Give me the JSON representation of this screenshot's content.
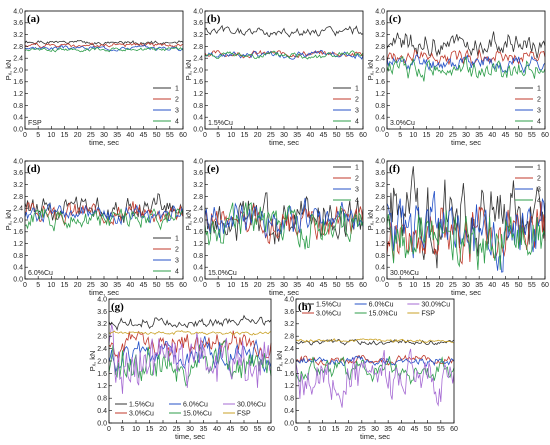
{
  "figure": {
    "x_label": "time, sec",
    "y_label": "Pₓ, kN"
  },
  "chart_data": [
    {
      "panel": "(a)",
      "type": "line",
      "note": "FSP",
      "xlim": [
        0,
        60
      ],
      "ylim": [
        0,
        4
      ],
      "x_ticks": [
        "0",
        "5",
        "10",
        "15",
        "20",
        "25",
        "30",
        "35",
        "40",
        "45",
        "50",
        "55",
        "60"
      ],
      "y_ticks": [
        "0.0",
        "0.4",
        "0.8",
        "1.2",
        "1.6",
        "2.0",
        "2.4",
        "2.8",
        "3.2",
        "3.6",
        "4.0"
      ],
      "legend_position": "bottom-right",
      "series": [
        {
          "name": "1",
          "color": "#333333",
          "base": 2.92,
          "amp": 0.05,
          "seed": 1
        },
        {
          "name": "2",
          "color": "#c0392b",
          "base": 2.85,
          "amp": 0.05,
          "seed": 2
        },
        {
          "name": "3",
          "color": "#2451c7",
          "base": 2.75,
          "amp": 0.05,
          "seed": 3
        },
        {
          "name": "4",
          "color": "#2e9e4a",
          "base": 2.7,
          "amp": 0.05,
          "seed": 4
        }
      ]
    },
    {
      "panel": "(b)",
      "type": "line",
      "note": "1.5%Cu",
      "xlim": [
        0,
        60
      ],
      "ylim": [
        0,
        4
      ],
      "x_ticks": [
        "0",
        "5",
        "10",
        "15",
        "20",
        "25",
        "30",
        "35",
        "40",
        "45",
        "50",
        "55",
        "60"
      ],
      "y_ticks": [
        "0.0",
        "0.4",
        "0.8",
        "1.2",
        "1.6",
        "2.0",
        "2.4",
        "2.8",
        "3.2",
        "3.6",
        "4.0"
      ],
      "legend_position": "bottom-right",
      "series": [
        {
          "name": "1",
          "color": "#333333",
          "base": 3.28,
          "amp": 0.12,
          "seed": 5
        },
        {
          "name": "2",
          "color": "#c0392b",
          "base": 2.55,
          "amp": 0.08,
          "seed": 6
        },
        {
          "name": "3",
          "color": "#2451c7",
          "base": 2.52,
          "amp": 0.08,
          "seed": 7
        },
        {
          "name": "4",
          "color": "#2e9e4a",
          "base": 2.5,
          "amp": 0.08,
          "seed": 8
        }
      ]
    },
    {
      "panel": "(c)",
      "type": "line",
      "note": "3.0%Cu",
      "xlim": [
        0,
        60
      ],
      "ylim": [
        0,
        4
      ],
      "x_ticks": [
        "0",
        "5",
        "10",
        "15",
        "20",
        "25",
        "30",
        "35",
        "40",
        "45",
        "50",
        "55",
        "60"
      ],
      "y_ticks": [
        "0.0",
        "0.4",
        "0.8",
        "1.2",
        "1.6",
        "2.0",
        "2.4",
        "2.8",
        "3.2",
        "3.6",
        "4.0"
      ],
      "legend_position": "bottom-right",
      "series": [
        {
          "name": "1",
          "color": "#333333",
          "base": 2.85,
          "amp": 0.3,
          "seed": 9
        },
        {
          "name": "2",
          "color": "#c0392b",
          "base": 2.45,
          "amp": 0.2,
          "seed": 10
        },
        {
          "name": "3",
          "color": "#2451c7",
          "base": 2.25,
          "amp": 0.2,
          "seed": 11
        },
        {
          "name": "4",
          "color": "#2e9e4a",
          "base": 2.05,
          "amp": 0.25,
          "seed": 12
        }
      ]
    },
    {
      "panel": "(d)",
      "type": "line",
      "note": "6.0%Cu",
      "xlim": [
        0,
        60
      ],
      "ylim": [
        0,
        4
      ],
      "x_ticks": [
        "0",
        "5",
        "10",
        "15",
        "20",
        "25",
        "30",
        "35",
        "40",
        "45",
        "50",
        "55",
        "60"
      ],
      "y_ticks": [
        "0.0",
        "0.4",
        "0.8",
        "1.2",
        "1.6",
        "2.0",
        "2.4",
        "2.8",
        "3.2",
        "3.6",
        "4.0"
      ],
      "legend_position": "bottom-right",
      "series": [
        {
          "name": "1",
          "color": "#333333",
          "base": 2.45,
          "amp": 0.3,
          "seed": 13
        },
        {
          "name": "2",
          "color": "#c0392b",
          "base": 2.25,
          "amp": 0.25,
          "seed": 14
        },
        {
          "name": "3",
          "color": "#2451c7",
          "base": 2.2,
          "amp": 0.2,
          "seed": 15
        },
        {
          "name": "4",
          "color": "#2e9e4a",
          "base": 2.05,
          "amp": 0.25,
          "seed": 16
        }
      ]
    },
    {
      "panel": "(e)",
      "type": "line",
      "note": "15.0%Cu",
      "xlim": [
        0,
        60
      ],
      "ylim": [
        0,
        4
      ],
      "x_ticks": [
        "0",
        "5",
        "10",
        "15",
        "20",
        "25",
        "30",
        "35",
        "40",
        "45",
        "50",
        "55",
        "60"
      ],
      "y_ticks": [
        "0.0",
        "0.4",
        "0.8",
        "1.2",
        "1.6",
        "2.0",
        "2.4",
        "2.8",
        "3.2",
        "3.6",
        "4.0"
      ],
      "legend_position": "top-right",
      "series": [
        {
          "name": "1",
          "color": "#333333",
          "base": 2.0,
          "amp": 0.5,
          "seed": 17
        },
        {
          "name": "2",
          "color": "#c0392b",
          "base": 1.95,
          "amp": 0.4,
          "seed": 18
        },
        {
          "name": "3",
          "color": "#2451c7",
          "base": 2.0,
          "amp": 0.4,
          "seed": 19
        },
        {
          "name": "4",
          "color": "#2e9e4a",
          "base": 1.9,
          "amp": 0.45,
          "seed": 20
        }
      ]
    },
    {
      "panel": "(f)",
      "type": "line",
      "note": "30.0%Cu",
      "xlim": [
        0,
        60
      ],
      "ylim": [
        0,
        4
      ],
      "x_ticks": [
        "0",
        "5",
        "10",
        "15",
        "20",
        "25",
        "30",
        "35",
        "40",
        "45",
        "50",
        "55",
        "60"
      ],
      "y_ticks": [
        "0.0",
        "0.4",
        "0.8",
        "1.2",
        "1.6",
        "2.0",
        "2.4",
        "2.8",
        "3.2",
        "3.6",
        "4.0"
      ],
      "legend_position": "top-right",
      "series": [
        {
          "name": "1",
          "color": "#333333",
          "base": 2.3,
          "amp": 0.9,
          "seed": 21
        },
        {
          "name": "2",
          "color": "#c0392b",
          "base": 1.6,
          "amp": 0.7,
          "seed": 22
        },
        {
          "name": "3",
          "color": "#2451c7",
          "base": 1.7,
          "amp": 0.8,
          "seed": 23
        },
        {
          "name": "4",
          "color": "#2e9e4a",
          "base": 1.4,
          "amp": 0.7,
          "seed": 24
        }
      ]
    },
    {
      "panel": "(g)",
      "type": "line",
      "note": "",
      "xlim": [
        0,
        60
      ],
      "ylim": [
        0,
        4
      ],
      "x_ticks": [
        "0",
        "5",
        "10",
        "15",
        "20",
        "25",
        "30",
        "35",
        "40",
        "45",
        "50",
        "55",
        "60"
      ],
      "y_ticks": [
        "0.0",
        "0.4",
        "0.8",
        "1.2",
        "1.6",
        "2.0",
        "2.4",
        "2.8",
        "3.2",
        "3.6",
        "4.0"
      ],
      "legend_position": "bottom",
      "series": [
        {
          "name": "1.5%Cu",
          "color": "#333333",
          "base": 3.25,
          "amp": 0.12,
          "seed": 25
        },
        {
          "name": "3.0%Cu",
          "color": "#c0392b",
          "base": 2.6,
          "amp": 0.3,
          "seed": 26
        },
        {
          "name": "6.0%Cu",
          "color": "#2451c7",
          "base": 2.2,
          "amp": 0.3,
          "seed": 27
        },
        {
          "name": "15.0%Cu",
          "color": "#2e9e4a",
          "base": 1.9,
          "amp": 0.45,
          "seed": 28
        },
        {
          "name": "30.0%Cu",
          "color": "#a66bd3",
          "base": 1.9,
          "amp": 0.7,
          "seed": 29
        },
        {
          "name": "FSP",
          "color": "#c9a227",
          "base": 2.9,
          "amp": 0.04,
          "seed": 30
        }
      ]
    },
    {
      "panel": "(h)",
      "type": "line",
      "note": "",
      "xlim": [
        0,
        60
      ],
      "ylim": [
        0,
        4
      ],
      "x_ticks": [
        "0",
        "5",
        "10",
        "15",
        "20",
        "25",
        "30",
        "35",
        "40",
        "45",
        "50",
        "55",
        "60"
      ],
      "y_ticks": [
        "0.0",
        "0.4",
        "0.8",
        "1.2",
        "1.6",
        "2.0",
        "2.4",
        "2.8",
        "3.2",
        "3.6",
        "4.0"
      ],
      "legend_position": "top",
      "series": [
        {
          "name": "1.5%Cu",
          "color": "#333333",
          "base": 2.6,
          "amp": 0.06,
          "seed": 31
        },
        {
          "name": "3.0%Cu",
          "color": "#c0392b",
          "base": 2.05,
          "amp": 0.1,
          "seed": 32
        },
        {
          "name": "6.0%Cu",
          "color": "#2451c7",
          "base": 2.0,
          "amp": 0.1,
          "seed": 33
        },
        {
          "name": "15.0%Cu",
          "color": "#2e9e4a",
          "base": 1.75,
          "amp": 0.25,
          "seed": 34
        },
        {
          "name": "30.0%Cu",
          "color": "#a66bd3",
          "base": 1.5,
          "amp": 0.5,
          "seed": 35
        },
        {
          "name": "FSP",
          "color": "#c9a227",
          "base": 2.65,
          "amp": 0.04,
          "seed": 36
        }
      ]
    }
  ]
}
